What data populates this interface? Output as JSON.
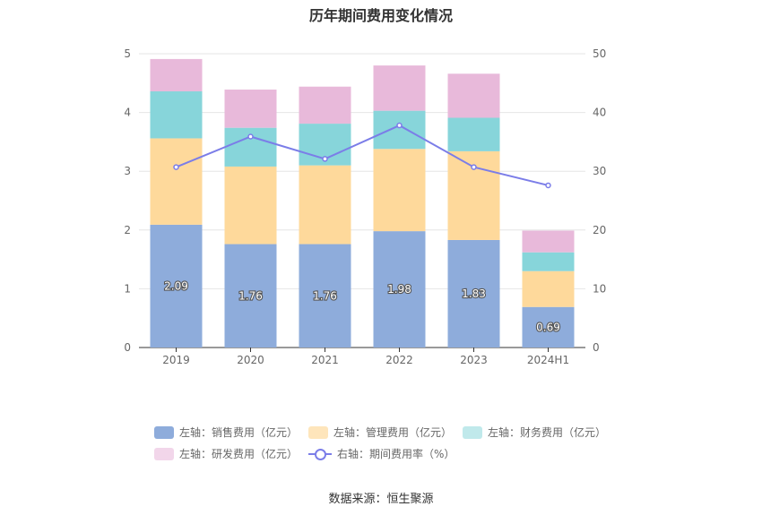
{
  "chart_data": {
    "type": "bar",
    "title": "历年期间费用变化情况",
    "categories": [
      "2019",
      "2020",
      "2021",
      "2022",
      "2023",
      "2024H1"
    ],
    "left_axis": {
      "ylim": [
        0,
        5
      ],
      "ticks": [
        "0",
        "1",
        "2",
        "3",
        "4",
        "5"
      ]
    },
    "right_axis": {
      "ylim": [
        0,
        50
      ],
      "ticks": [
        "0",
        "10",
        "20",
        "30",
        "40",
        "50"
      ]
    },
    "series": [
      {
        "name": "左轴：销售费用（亿元）",
        "axis": "left",
        "stack": true,
        "color": "#8eacdb",
        "values": [
          2.09,
          1.76,
          1.76,
          1.98,
          1.83,
          0.69
        ],
        "labels": [
          "2.09",
          "1.76",
          "1.76",
          "1.98",
          "1.83",
          "0.69"
        ]
      },
      {
        "name": "左轴：管理费用（亿元）",
        "axis": "left",
        "stack": true,
        "color": "#fed99b",
        "values": [
          1.47,
          1.32,
          1.34,
          1.4,
          1.51,
          0.61
        ]
      },
      {
        "name": "左轴：财务费用（亿元）",
        "axis": "left",
        "stack": true,
        "color": "#87d5da",
        "values": [
          0.8,
          0.66,
          0.71,
          0.65,
          0.57,
          0.32
        ]
      },
      {
        "name": "左轴：研发费用（亿元）",
        "axis": "left",
        "stack": true,
        "color": "#e8b9da",
        "values": [
          0.55,
          0.65,
          0.63,
          0.77,
          0.75,
          0.37
        ]
      },
      {
        "name": "右轴：期间费用率（%）",
        "axis": "right",
        "type": "line",
        "color": "#7b7de8",
        "values": [
          30.7,
          35.9,
          32.1,
          37.8,
          30.7,
          27.6
        ]
      }
    ],
    "grid": true,
    "legend_position": "bottom"
  },
  "legend_colors": [
    "#8eacdb",
    "#fee5bb",
    "#c0e9eb",
    "#f2d6ea",
    "#7b7de8"
  ],
  "source": "数据来源：恒生聚源"
}
